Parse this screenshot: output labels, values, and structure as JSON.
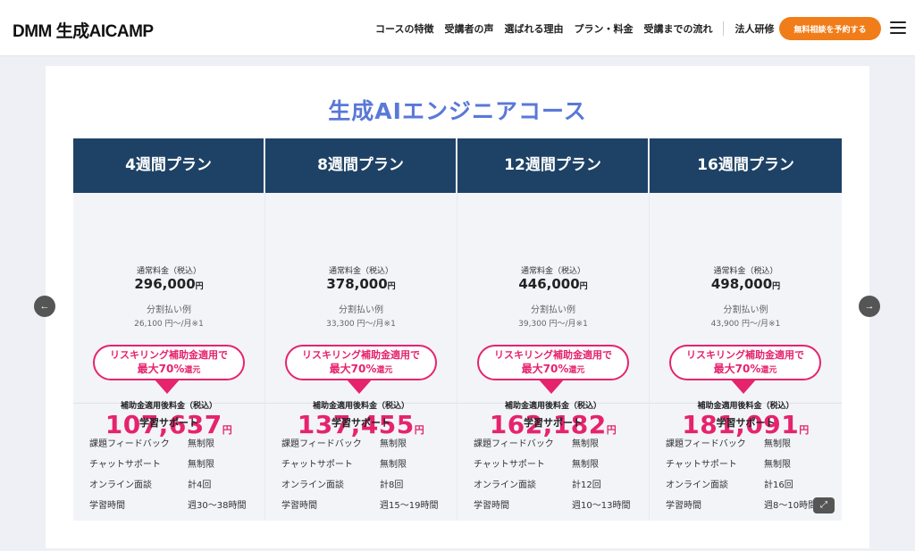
{
  "header": {
    "logo": "DMM 生成AICAMP",
    "nav": [
      "コースの特徴",
      "受講者の声",
      "選ばれる理由",
      "プラン・料金",
      "受講までの流れ",
      "法人研修"
    ],
    "cta": "無料相談を予約する"
  },
  "course": {
    "title": "生成AIエンジニアコース"
  },
  "labels": {
    "regular": "通常料金（税込）",
    "installment": "分割払い例",
    "subsidy_line1": "リスキリング補助金適用で",
    "subsidy_line2": "最大70%",
    "subsidy_line2_suffix": "還元",
    "after": "補助金適用後料金（税込）",
    "yen": "円",
    "support_title": "学習サポート",
    "feedback": "課題フィードバック",
    "chat": "チャットサポート",
    "online": "オンライン面談",
    "study": "学習時間"
  },
  "plans": [
    {
      "name": "4週間プラン",
      "regular": "296,000",
      "installment": "26,100 円〜/月※1",
      "after": "107,637",
      "feedback": "無制限",
      "chat": "無制限",
      "online": "計4回",
      "study": "週30〜38時間"
    },
    {
      "name": "8週間プラン",
      "regular": "378,000",
      "installment": "33,300 円〜/月※1",
      "after": "137,455",
      "feedback": "無制限",
      "chat": "無制限",
      "online": "計8回",
      "study": "週15〜19時間"
    },
    {
      "name": "12週間プラン",
      "regular": "446,000",
      "installment": "39,300 円〜/月※1",
      "after": "162,182",
      "feedback": "無制限",
      "chat": "無制限",
      "online": "計12回",
      "study": "週10〜13時間"
    },
    {
      "name": "16週間プラン",
      "regular": "498,000",
      "installment": "43,900 円〜/月※1",
      "after": "181,091",
      "feedback": "無制限",
      "chat": "無制限",
      "online": "計16回",
      "study": "週8〜10時間"
    }
  ],
  "colors": {
    "accent": "#e6236d",
    "header": "#1e4266",
    "cta": "#f07d19"
  },
  "icons": {
    "prev": "arrow-left-icon",
    "next": "arrow-right-icon",
    "menu": "hamburger-icon",
    "expand": "expand-icon"
  }
}
